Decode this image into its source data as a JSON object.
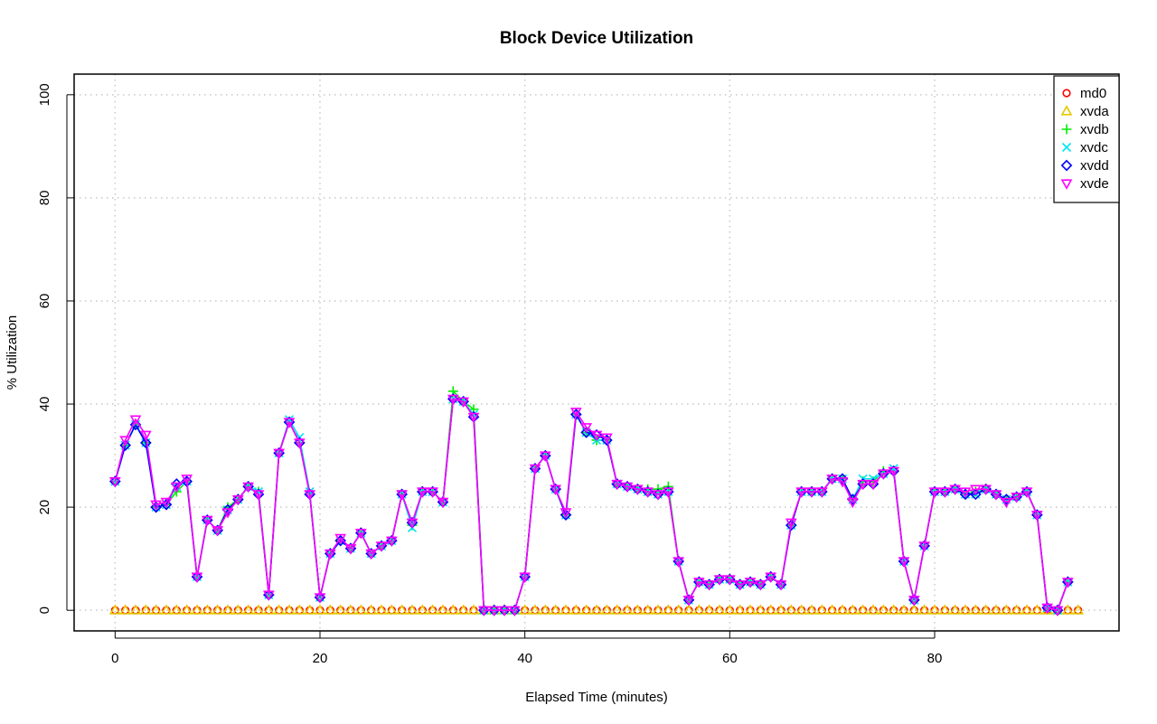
{
  "chart_data": {
    "type": "line",
    "title": "Block Device Utilization",
    "xlabel": "Elapsed Time (minutes)",
    "ylabel": "% Utilization",
    "xlim": [
      -4,
      98
    ],
    "ylim": [
      -4,
      104
    ],
    "x_ticks": [
      0,
      20,
      40,
      60,
      80
    ],
    "y_ticks": [
      0,
      20,
      40,
      60,
      80,
      100
    ],
    "grid": true,
    "legend_position": "top-right",
    "series": [
      {
        "name": "md0",
        "color": "#ff0000",
        "marker": "circle",
        "line": false,
        "values": [
          0,
          0,
          0,
          0,
          0,
          0,
          0,
          0,
          0,
          0,
          0,
          0,
          0,
          0,
          0,
          0,
          0,
          0,
          0,
          0,
          0,
          0,
          0,
          0,
          0,
          0,
          0,
          0,
          0,
          0,
          0,
          0,
          0,
          0,
          0,
          0,
          0,
          0,
          0,
          0,
          0,
          0,
          0,
          0,
          0,
          0,
          0,
          0,
          0,
          0,
          0,
          0,
          0,
          0,
          0,
          0,
          0,
          0,
          0,
          0,
          0,
          0,
          0,
          0,
          0,
          0,
          0,
          0,
          0,
          0,
          0,
          0,
          0,
          0,
          0,
          0,
          0,
          0,
          0,
          0,
          0,
          0,
          0,
          0,
          0,
          0,
          0,
          0,
          0,
          0,
          0,
          0,
          0,
          0,
          0
        ]
      },
      {
        "name": "xvda",
        "color": "#e6c800",
        "marker": "triangle-up",
        "line": false,
        "values": [
          0,
          0,
          0,
          0,
          0,
          0,
          0,
          0,
          0,
          0,
          0,
          0,
          0,
          0,
          0,
          0,
          0,
          0,
          0,
          0,
          0,
          0,
          0,
          0,
          0,
          0,
          0,
          0,
          0,
          0,
          0,
          0,
          0,
          0,
          0,
          0,
          0,
          0,
          0,
          0,
          0,
          0,
          0,
          0,
          0,
          0,
          0,
          0,
          0,
          0,
          0,
          0,
          0,
          0,
          0,
          0,
          0,
          0,
          0,
          0,
          0,
          0,
          0,
          0,
          0,
          0,
          0,
          0,
          0,
          0,
          0,
          0,
          0,
          0,
          0,
          0,
          0,
          0,
          0,
          0,
          0,
          0,
          0,
          0,
          0,
          0,
          0,
          0,
          0,
          0,
          0,
          0,
          0,
          0,
          0
        ]
      },
      {
        "name": "xvdb",
        "color": "#00ee00",
        "marker": "plus",
        "line": true,
        "values": [
          25,
          32,
          36,
          32.5,
          20,
          20.5,
          23,
          25,
          6.5,
          17.5,
          15.5,
          20,
          21.5,
          24,
          23,
          3,
          30.5,
          36.5,
          32.5,
          22.5,
          2.5,
          11,
          13.5,
          12,
          15,
          11,
          12.5,
          13.5,
          22.5,
          16.5,
          23,
          23,
          21,
          42.5,
          40.5,
          39,
          0,
          0,
          0,
          0,
          6.5,
          27.5,
          30,
          23.5,
          18.5,
          38,
          34.5,
          33,
          33,
          24.5,
          24,
          23.5,
          23.5,
          23.5,
          24,
          9.5,
          2,
          5.5,
          5,
          6,
          6,
          5,
          5.5,
          5,
          6.5,
          5,
          16.5,
          23,
          23,
          23,
          25.5,
          25.5,
          21.5,
          25,
          25,
          27,
          27,
          9.5,
          2,
          12.5,
          23,
          23,
          23.5,
          22.5,
          23,
          23.5,
          22.5,
          21.5,
          22,
          23,
          18.5,
          0.5,
          0,
          5.5
        ]
      },
      {
        "name": "xvdc",
        "color": "#00e5ee",
        "marker": "cross",
        "line": true,
        "values": [
          25,
          32,
          36,
          32.5,
          20,
          20.5,
          24,
          25,
          6.5,
          17.5,
          15.5,
          19.5,
          21.5,
          24,
          23,
          3,
          30.5,
          37,
          33.5,
          23,
          2.5,
          11,
          13.5,
          12,
          15,
          11,
          12.5,
          13.5,
          22.5,
          16,
          23,
          23,
          21,
          41,
          40.5,
          38,
          0,
          0,
          0,
          0,
          6.5,
          27.5,
          30,
          23.5,
          18.5,
          38,
          34.5,
          33,
          33,
          24.5,
          24,
          23.5,
          23,
          22.5,
          23,
          9.5,
          2,
          5.5,
          5,
          6,
          6,
          5,
          5.5,
          5,
          6.5,
          5,
          16.5,
          23,
          23,
          23,
          25.5,
          25.5,
          21.5,
          25.5,
          25.5,
          26.5,
          27.5,
          9.5,
          2,
          12.5,
          23,
          23,
          23.5,
          22.5,
          22.5,
          23.5,
          22.5,
          21.5,
          22,
          23,
          18.5,
          0.5,
          0,
          5.5
        ]
      },
      {
        "name": "xvdd",
        "color": "#0000ff",
        "marker": "diamond",
        "line": true,
        "values": [
          25,
          32,
          36,
          32.5,
          20,
          20.5,
          24.5,
          25,
          6.5,
          17.5,
          15.5,
          19.5,
          21.5,
          24,
          22.5,
          3,
          30.5,
          36.5,
          32.5,
          22.5,
          2.5,
          11,
          13.5,
          12,
          15,
          11,
          12.5,
          13.5,
          22.5,
          17,
          23,
          23,
          21,
          41,
          40.5,
          37.5,
          0,
          0,
          0,
          0,
          6.5,
          27.5,
          30,
          23.5,
          18.5,
          38,
          34.5,
          34,
          33,
          24.5,
          24,
          23.5,
          23,
          22.5,
          23,
          9.5,
          2,
          5.5,
          5,
          6,
          6,
          5,
          5.5,
          5,
          6.5,
          5,
          16.5,
          23,
          23,
          23,
          25.5,
          25.5,
          21.5,
          24.5,
          24.5,
          26.5,
          27,
          9.5,
          2,
          12.5,
          23,
          23,
          23.5,
          22.5,
          22.5,
          23.5,
          22.5,
          21.5,
          22,
          23,
          18.5,
          0.5,
          0,
          5.5
        ]
      },
      {
        "name": "xvde",
        "color": "#ff00ff",
        "marker": "triangle-down",
        "line": true,
        "values": [
          25,
          33,
          37,
          34,
          20.5,
          21,
          24,
          25.5,
          6.5,
          17.5,
          15.5,
          19,
          21.5,
          24,
          22.5,
          3,
          30.5,
          36.5,
          32.5,
          22.5,
          2.5,
          11,
          14,
          12,
          15,
          11,
          12.5,
          13.5,
          22.5,
          17,
          23,
          23,
          21,
          41,
          40.5,
          37.5,
          0,
          0,
          0,
          0,
          6.5,
          27.5,
          30,
          23.5,
          19,
          38.5,
          35.5,
          34,
          33.5,
          24.5,
          24,
          23.5,
          23,
          22.5,
          23,
          9.5,
          2,
          5.5,
          5,
          6,
          6,
          5,
          5.5,
          5,
          6.5,
          5,
          17,
          23,
          23,
          23,
          25.5,
          25,
          21,
          24.5,
          24.5,
          26.5,
          27,
          9.5,
          2,
          12.5,
          23,
          23,
          23.5,
          23,
          23.5,
          23.5,
          22.5,
          21,
          22,
          23,
          18.5,
          0.5,
          0,
          5.5
        ]
      }
    ]
  }
}
